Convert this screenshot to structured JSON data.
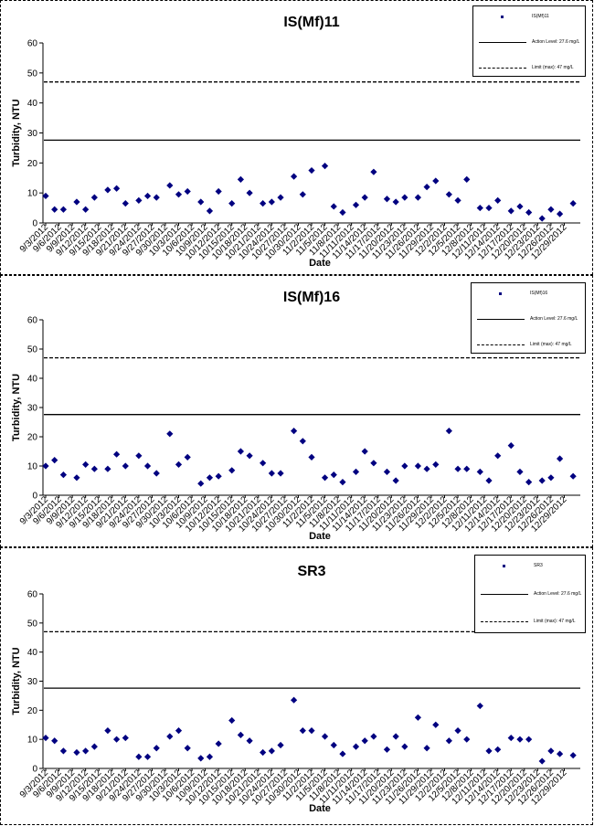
{
  "chart_data": [
    {
      "type": "scatter",
      "title": "IS(Mf)11",
      "xlabel": "Date",
      "ylabel": "Turbidity, NTU",
      "ylim": [
        0,
        60
      ],
      "yticks": [
        0,
        10,
        20,
        30,
        40,
        50,
        60
      ],
      "grid": false,
      "legend_position": "top-right",
      "x_tick_labels": [
        "9/3/2012",
        "9/6/2012",
        "9/9/2012",
        "9/12/2012",
        "9/15/2012",
        "9/18/2012",
        "9/21/2012",
        "9/24/2012",
        "9/27/2012",
        "9/30/2012",
        "10/3/2012",
        "10/6/2012",
        "10/9/2012",
        "10/12/2012",
        "10/15/2012",
        "10/18/2012",
        "10/21/2012",
        "10/24/2012",
        "10/27/2012",
        "10/30/2012",
        "11/2/2012",
        "11/5/2012",
        "11/8/2012",
        "11/11/2012",
        "11/14/2012",
        "11/17/2012",
        "11/20/2012",
        "11/23/2012",
        "11/26/2012",
        "11/29/2012",
        "12/2/2012",
        "12/5/2012",
        "12/8/2012",
        "12/11/2012",
        "12/14/2012",
        "12/17/2012",
        "12/20/2012",
        "12/23/2012",
        "12/26/2012",
        "12/29/2012"
      ],
      "series": [
        {
          "name": "IS(Mf)11",
          "color": "#000080",
          "marker": "diamond",
          "points": [
            [
              "9/3/2012",
              9
            ],
            [
              "9/5/2012",
              4.5
            ],
            [
              "9/7/2012",
              4.5
            ],
            [
              "9/10/2012",
              7
            ],
            [
              "9/12/2012",
              4.5
            ],
            [
              "9/14/2012",
              8.5
            ],
            [
              "9/17/2012",
              11
            ],
            [
              "9/19/2012",
              11.5
            ],
            [
              "9/21/2012",
              6.5
            ],
            [
              "9/24/2012",
              7.5
            ],
            [
              "9/26/2012",
              9
            ],
            [
              "9/28/2012",
              8.5
            ],
            [
              "10/1/2012",
              12.5
            ],
            [
              "10/3/2012",
              9.5
            ],
            [
              "10/5/2012",
              10.5
            ],
            [
              "10/8/2012",
              7
            ],
            [
              "10/10/2012",
              4
            ],
            [
              "10/12/2012",
              10.5
            ],
            [
              "10/15/2012",
              6.5
            ],
            [
              "10/17/2012",
              14.5
            ],
            [
              "10/19/2012",
              10
            ],
            [
              "10/22/2012",
              6.5
            ],
            [
              "10/24/2012",
              7
            ],
            [
              "10/26/2012",
              8.5
            ],
            [
              "10/29/2012",
              15.5
            ],
            [
              "10/31/2012",
              9.5
            ],
            [
              "11/2/2012",
              17.5
            ],
            [
              "11/5/2012",
              19
            ],
            [
              "11/7/2012",
              5.5
            ],
            [
              "11/9/2012",
              3.5
            ],
            [
              "11/12/2012",
              6
            ],
            [
              "11/14/2012",
              8.5
            ],
            [
              "11/16/2012",
              17
            ],
            [
              "11/19/2012",
              8
            ],
            [
              "11/21/2012",
              7
            ],
            [
              "11/23/2012",
              8.5
            ],
            [
              "11/26/2012",
              8.5
            ],
            [
              "11/28/2012",
              12
            ],
            [
              "11/30/2012",
              14
            ],
            [
              "12/3/2012",
              9.5
            ],
            [
              "12/5/2012",
              7.5
            ],
            [
              "12/7/2012",
              14.5
            ],
            [
              "12/10/2012",
              5
            ],
            [
              "12/12/2012",
              5
            ],
            [
              "12/14/2012",
              7.5
            ],
            [
              "12/17/2012",
              4
            ],
            [
              "12/19/2012",
              5.5
            ],
            [
              "12/21/2012",
              3.5
            ],
            [
              "12/24/2012",
              1.5
            ],
            [
              "12/26/2012",
              4.5
            ],
            [
              "12/28/2012",
              3
            ],
            [
              "12/31/2012",
              6.5
            ]
          ]
        },
        {
          "name": "Action Level: 27.6 mg/L",
          "type": "hline",
          "value": 27.6,
          "style": "solid",
          "color": "#000000"
        },
        {
          "name": "Limit (max): 47 mg/L",
          "type": "hline",
          "value": 47,
          "style": "dashed",
          "color": "#000000"
        }
      ],
      "legend": [
        {
          "label": "IS(Mf)11",
          "symbol": "dot"
        },
        {
          "label": "Action Level: 27.6 mg/L",
          "symbol": "solid"
        },
        {
          "label": "Limit (max): 47 mg/L",
          "symbol": "dashed"
        }
      ]
    },
    {
      "type": "scatter",
      "title": "IS(Mf)16",
      "xlabel": "Date",
      "ylabel": "Turbidity, NTU",
      "ylim": [
        0,
        60
      ],
      "yticks": [
        0,
        10,
        20,
        30,
        40,
        50,
        60
      ],
      "grid": false,
      "legend_position": "top-right",
      "x_tick_labels": [
        "9/3/2012",
        "9/6/2012",
        "9/9/2012",
        "9/12/2012",
        "9/15/2012",
        "9/18/2012",
        "9/21/2012",
        "9/24/2012",
        "9/27/2012",
        "9/30/2012",
        "10/3/2012",
        "10/6/2012",
        "10/9/2012",
        "10/12/2012",
        "10/15/2012",
        "10/18/2012",
        "10/21/2012",
        "10/24/2012",
        "10/27/2012",
        "10/30/2012",
        "11/2/2012",
        "11/5/2012",
        "11/8/2012",
        "11/11/2012",
        "11/14/2012",
        "11/17/2012",
        "11/20/2012",
        "11/23/2012",
        "11/26/2012",
        "11/29/2012",
        "12/2/2012",
        "12/5/2012",
        "12/8/2012",
        "12/11/2012",
        "12/14/2012",
        "12/17/2012",
        "12/20/2012",
        "12/23/2012",
        "12/26/2012",
        "12/29/2012"
      ],
      "series": [
        {
          "name": "IS(Mf)16",
          "color": "#000080",
          "marker": "diamond",
          "points": [
            [
              "9/3/2012",
              10
            ],
            [
              "9/5/2012",
              12
            ],
            [
              "9/7/2012",
              7
            ],
            [
              "9/10/2012",
              6
            ],
            [
              "9/12/2012",
              10.5
            ],
            [
              "9/14/2012",
              9
            ],
            [
              "9/17/2012",
              9
            ],
            [
              "9/19/2012",
              14
            ],
            [
              "9/21/2012",
              10
            ],
            [
              "9/24/2012",
              13.5
            ],
            [
              "9/26/2012",
              10
            ],
            [
              "9/28/2012",
              7.5
            ],
            [
              "10/1/2012",
              21
            ],
            [
              "10/3/2012",
              10.5
            ],
            [
              "10/5/2012",
              13
            ],
            [
              "10/8/2012",
              4
            ],
            [
              "10/10/2012",
              6
            ],
            [
              "10/12/2012",
              6.5
            ],
            [
              "10/15/2012",
              8.5
            ],
            [
              "10/17/2012",
              15
            ],
            [
              "10/19/2012",
              13.5
            ],
            [
              "10/22/2012",
              11
            ],
            [
              "10/24/2012",
              7.5
            ],
            [
              "10/26/2012",
              7.5
            ],
            [
              "10/29/2012",
              22
            ],
            [
              "10/31/2012",
              18.5
            ],
            [
              "11/2/2012",
              13
            ],
            [
              "11/5/2012",
              6
            ],
            [
              "11/7/2012",
              7
            ],
            [
              "11/9/2012",
              4.5
            ],
            [
              "11/12/2012",
              8
            ],
            [
              "11/14/2012",
              15
            ],
            [
              "11/16/2012",
              11
            ],
            [
              "11/19/2012",
              8
            ],
            [
              "11/21/2012",
              5
            ],
            [
              "11/23/2012",
              10
            ],
            [
              "11/26/2012",
              10
            ],
            [
              "11/28/2012",
              9
            ],
            [
              "11/30/2012",
              10.5
            ],
            [
              "12/3/2012",
              22
            ],
            [
              "12/5/2012",
              9
            ],
            [
              "12/7/2012",
              9
            ],
            [
              "12/10/2012",
              8
            ],
            [
              "12/12/2012",
              5
            ],
            [
              "12/14/2012",
              13.5
            ],
            [
              "12/17/2012",
              17
            ],
            [
              "12/19/2012",
              8
            ],
            [
              "12/21/2012",
              4.5
            ],
            [
              "12/24/2012",
              5
            ],
            [
              "12/26/2012",
              6
            ],
            [
              "12/28/2012",
              12.5
            ],
            [
              "12/31/2012",
              6.5
            ]
          ]
        },
        {
          "name": "Action Level: 27.6 mg/L",
          "type": "hline",
          "value": 27.6,
          "style": "solid",
          "color": "#000000"
        },
        {
          "name": "Limit (max): 47 mg/L",
          "type": "hline",
          "value": 47,
          "style": "dashed",
          "color": "#000000"
        }
      ],
      "legend": [
        {
          "label": "IS(Mf)16",
          "symbol": "dot"
        },
        {
          "label": "Action Level: 27.6 mg/L",
          "symbol": "solid"
        },
        {
          "label": "Limit (max): 47 mg/L",
          "symbol": "dashed"
        }
      ]
    },
    {
      "type": "scatter",
      "title": "SR3",
      "xlabel": "Date",
      "ylabel": "Turbidity, NTU",
      "ylim": [
        0,
        60
      ],
      "yticks": [
        0,
        10,
        20,
        30,
        40,
        50,
        60
      ],
      "grid": false,
      "legend_position": "top-right",
      "x_tick_labels": [
        "9/3/2012",
        "9/6/2012",
        "9/9/2012",
        "9/12/2012",
        "9/15/2012",
        "9/18/2012",
        "9/21/2012",
        "9/24/2012",
        "9/27/2012",
        "9/30/2012",
        "10/3/2012",
        "10/6/2012",
        "10/9/2012",
        "10/12/2012",
        "10/15/2012",
        "10/18/2012",
        "10/21/2012",
        "10/24/2012",
        "10/27/2012",
        "10/30/2012",
        "11/2/2012",
        "11/5/2012",
        "11/8/2012",
        "11/11/2012",
        "11/14/2012",
        "11/17/2012",
        "11/20/2012",
        "11/23/2012",
        "11/26/2012",
        "11/29/2012",
        "12/2/2012",
        "12/5/2012",
        "12/8/2012",
        "12/11/2012",
        "12/14/2012",
        "12/17/2012",
        "12/20/2012",
        "12/23/2012",
        "12/26/2012",
        "12/29/2012"
      ],
      "series": [
        {
          "name": "SR3",
          "color": "#000080",
          "marker": "diamond",
          "points": [
            [
              "9/3/2012",
              10.5
            ],
            [
              "9/5/2012",
              9.5
            ],
            [
              "9/7/2012",
              6
            ],
            [
              "9/10/2012",
              5.5
            ],
            [
              "9/12/2012",
              6
            ],
            [
              "9/14/2012",
              7.5
            ],
            [
              "9/17/2012",
              13
            ],
            [
              "9/19/2012",
              10
            ],
            [
              "9/21/2012",
              10.5
            ],
            [
              "9/24/2012",
              4
            ],
            [
              "9/26/2012",
              4
            ],
            [
              "9/28/2012",
              7
            ],
            [
              "10/1/2012",
              11
            ],
            [
              "10/3/2012",
              13
            ],
            [
              "10/5/2012",
              7
            ],
            [
              "10/8/2012",
              3.5
            ],
            [
              "10/10/2012",
              4
            ],
            [
              "10/12/2012",
              8.5
            ],
            [
              "10/15/2012",
              16.5
            ],
            [
              "10/17/2012",
              11.5
            ],
            [
              "10/19/2012",
              9.5
            ],
            [
              "10/22/2012",
              5.5
            ],
            [
              "10/24/2012",
              6
            ],
            [
              "10/26/2012",
              8
            ],
            [
              "10/29/2012",
              23.5
            ],
            [
              "10/31/2012",
              13
            ],
            [
              "11/2/2012",
              13
            ],
            [
              "11/5/2012",
              11
            ],
            [
              "11/7/2012",
              8
            ],
            [
              "11/9/2012",
              5
            ],
            [
              "11/12/2012",
              7.5
            ],
            [
              "11/14/2012",
              9.5
            ],
            [
              "11/16/2012",
              11
            ],
            [
              "11/19/2012",
              6.5
            ],
            [
              "11/21/2012",
              11
            ],
            [
              "11/23/2012",
              7.5
            ],
            [
              "11/26/2012",
              17.5
            ],
            [
              "11/28/2012",
              7
            ],
            [
              "11/30/2012",
              15
            ],
            [
              "12/3/2012",
              9.5
            ],
            [
              "12/5/2012",
              13
            ],
            [
              "12/7/2012",
              10
            ],
            [
              "12/10/2012",
              21.5
            ],
            [
              "12/12/2012",
              6
            ],
            [
              "12/14/2012",
              6.5
            ],
            [
              "12/17/2012",
              10.5
            ],
            [
              "12/19/2012",
              10
            ],
            [
              "12/21/2012",
              10
            ],
            [
              "12/24/2012",
              2.5
            ],
            [
              "12/26/2012",
              6
            ],
            [
              "12/28/2012",
              5
            ],
            [
              "12/31/2012",
              4.5
            ]
          ]
        },
        {
          "name": "Action Level: 27.6 mg/L",
          "type": "hline",
          "value": 27.6,
          "style": "solid",
          "color": "#000000"
        },
        {
          "name": "Limit (max): 47 mg/L",
          "type": "hline",
          "value": 47,
          "style": "dashed",
          "color": "#000000"
        }
      ],
      "legend": [
        {
          "label": "SR3",
          "symbol": "dot"
        },
        {
          "label": "Action Level: 27.6 mg/L",
          "symbol": "solid"
        },
        {
          "label": "Limit (max): 47 mg/L",
          "symbol": "dashed"
        }
      ]
    }
  ]
}
